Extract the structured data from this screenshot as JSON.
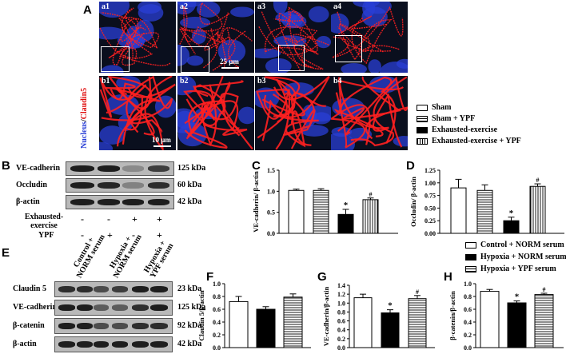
{
  "panels": {
    "A": "A",
    "B": "B",
    "C": "C",
    "D": "D",
    "E": "E",
    "F": "F",
    "G": "G",
    "H": "H"
  },
  "micro": {
    "top_labels": [
      "a1",
      "a2",
      "a3",
      "a4"
    ],
    "bottom_labels": [
      "b1",
      "b2",
      "b3",
      "b4"
    ],
    "scale_top": "25 μm",
    "scale_bottom": "10 μm",
    "stain_nucleus": "Nucleus",
    "stain_sep": "/",
    "stain_marker": "Claudin5",
    "colors": {
      "nucleus": "#2a3fd6",
      "claudin": "#ff2020",
      "background": "#0a0f1e"
    }
  },
  "legend_A": [
    {
      "label": "Sham",
      "pattern": "open"
    },
    {
      "label": "Sham + YPF",
      "pattern": "hatch-h"
    },
    {
      "label": "Exhausted-exercise",
      "pattern": "solid"
    },
    {
      "label": "Exhausted-exercise + YPF",
      "pattern": "hatch-v"
    }
  ],
  "blot_B": {
    "rows": [
      {
        "name": "VE-cadherin",
        "kda": "125 kDa"
      },
      {
        "name": "Occludin",
        "kda": "60 kDa"
      },
      {
        "name": "β-actin",
        "kda": "42 kDa"
      }
    ],
    "conditions": [
      {
        "name": "Exhausted-exercise",
        "values": [
          "-",
          "-",
          "+",
          "+"
        ]
      },
      {
        "name": "YPF",
        "values": [
          "-",
          "+",
          "-",
          "+"
        ]
      }
    ]
  },
  "blot_E": {
    "columns": [
      "Control + NORM serum",
      "Hypoxia + NORM serum",
      "Hypoxia + YPF serum"
    ],
    "rows": [
      {
        "name": "Claudin 5",
        "kda": "23 kDa"
      },
      {
        "name": "VE-cadherin",
        "kda": "125 kDa"
      },
      {
        "name": "β-catenin",
        "kda": "92 kDa"
      },
      {
        "name": "β-actin",
        "kda": "42 kDa"
      }
    ]
  },
  "legend_E": [
    {
      "label": "Control  + NORM serum",
      "pattern": "open"
    },
    {
      "label": "Hypoxia + NORM serum",
      "pattern": "solid"
    },
    {
      "label": "Hypoxia + YPF serum",
      "pattern": "hatch-h"
    }
  ],
  "chart_data": [
    {
      "panel": "C",
      "type": "bar",
      "ylabel": "VE-cadherin/ β-actin",
      "ylim": [
        0,
        1.5
      ],
      "yticks": [
        "0.0",
        "0.5",
        "1.0",
        "1.5"
      ],
      "values": [
        1.02,
        1.02,
        0.45,
        0.8
      ],
      "errors": [
        0.03,
        0.04,
        0.12,
        0.04
      ],
      "patterns": [
        "open",
        "hatch-h",
        "solid",
        "hatch-v"
      ],
      "marks": [
        "",
        "",
        "*",
        "#"
      ]
    },
    {
      "panel": "D",
      "type": "bar",
      "ylabel": "Occludin/ β-actin",
      "ylim": [
        0,
        1.25
      ],
      "yticks": [
        "0.00",
        "0.25",
        "0.50",
        "0.75",
        "1.00",
        "1.25"
      ],
      "values": [
        0.9,
        0.85,
        0.25,
        0.93
      ],
      "errors": [
        0.17,
        0.11,
        0.07,
        0.05
      ],
      "patterns": [
        "open",
        "hatch-h",
        "solid",
        "hatch-v"
      ],
      "marks": [
        "",
        "",
        "*",
        "#"
      ]
    },
    {
      "panel": "F",
      "type": "bar",
      "ylabel": "Claudin 5/β-actin",
      "ylim": [
        0,
        1.0
      ],
      "yticks": [
        "0.0",
        "0.2",
        "0.4",
        "0.6",
        "0.8",
        "1.0"
      ],
      "values": [
        0.72,
        0.6,
        0.79
      ],
      "errors": [
        0.08,
        0.04,
        0.05
      ],
      "patterns": [
        "open",
        "solid",
        "hatch-h"
      ],
      "marks": [
        "",
        "",
        ""
      ]
    },
    {
      "panel": "G",
      "type": "bar",
      "ylabel": "VE-cadherin/β-actin",
      "ylim": [
        0,
        1.4
      ],
      "yticks": [
        "0.0",
        "0.2",
        "0.4",
        "0.6",
        "0.8",
        "1.0",
        "1.2",
        "1.4"
      ],
      "values": [
        1.12,
        0.78,
        1.1
      ],
      "errors": [
        0.08,
        0.07,
        0.07
      ],
      "patterns": [
        "open",
        "solid",
        "hatch-h"
      ],
      "marks": [
        "",
        "*",
        "#"
      ]
    },
    {
      "panel": "H",
      "type": "bar",
      "ylabel": "β-catenin/β-actin",
      "ylim": [
        0,
        1.0
      ],
      "yticks": [
        "0.0",
        "0.2",
        "0.4",
        "0.6",
        "0.8",
        "1.0"
      ],
      "values": [
        0.88,
        0.7,
        0.83
      ],
      "errors": [
        0.03,
        0.03,
        0.02
      ],
      "patterns": [
        "open",
        "solid",
        "hatch-h"
      ],
      "marks": [
        "",
        "*",
        "#"
      ]
    }
  ]
}
